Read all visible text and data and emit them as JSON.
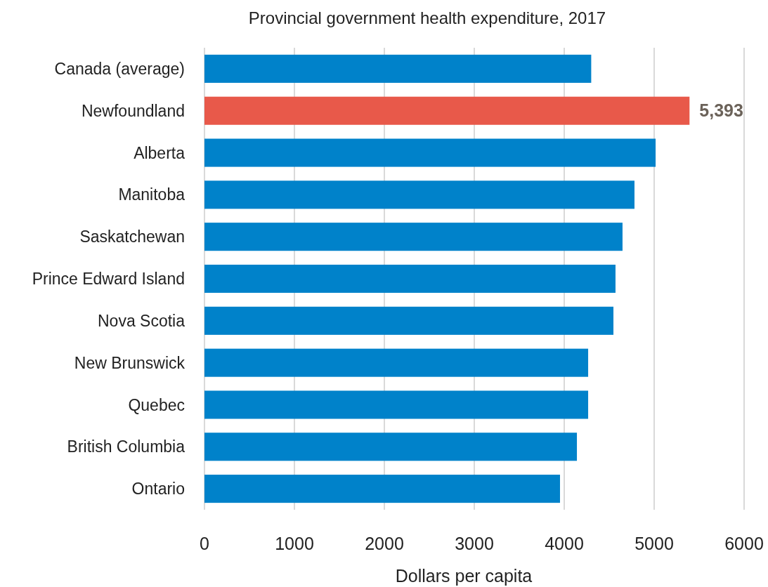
{
  "chart_data": {
    "type": "bar",
    "orientation": "horizontal",
    "title": "Provincial government health expenditure, 2017",
    "xlabel": "Dollars per capita",
    "categories": [
      "Canada (average)",
      "Newfoundland",
      "Alberta",
      "Manitoba",
      "Saskatchewan",
      "Prince Edward Island",
      "Nova Scotia",
      "New Brunswick",
      "Quebec",
      "British Columbia",
      "Ontario"
    ],
    "values": [
      4300,
      5393,
      5016,
      4781,
      4648,
      4570,
      4547,
      4266,
      4266,
      4141,
      3953
    ],
    "colors": [
      "#0082ca",
      "#e8594a",
      "#0082ca",
      "#0082ca",
      "#0082ca",
      "#0082ca",
      "#0082ca",
      "#0082ca",
      "#0082ca",
      "#0082ca",
      "#0082ca"
    ],
    "value_labels": [
      null,
      "5,393",
      null,
      null,
      null,
      null,
      null,
      null,
      null,
      null,
      null
    ],
    "xlim": [
      0,
      6000
    ],
    "xticks": [
      0,
      1000,
      2000,
      3000,
      4000,
      5000,
      6000
    ],
    "grid": "x"
  }
}
